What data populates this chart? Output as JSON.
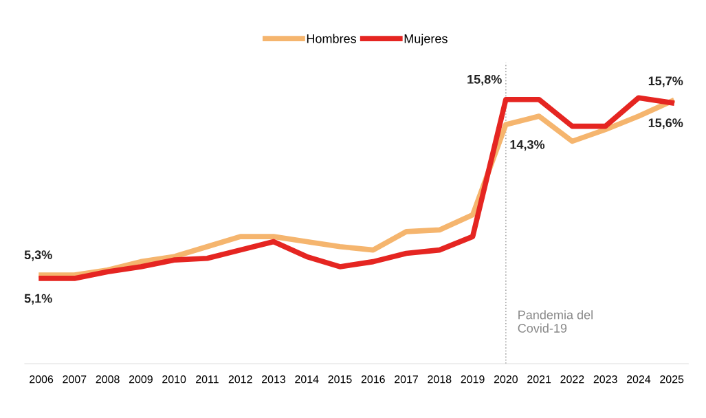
{
  "chart_data": {
    "type": "line",
    "categories": [
      "2006",
      "2007",
      "2008",
      "2009",
      "2010",
      "2011",
      "2012",
      "2013",
      "2014",
      "2015",
      "2016",
      "2017",
      "2018",
      "2019",
      "2020",
      "2021",
      "2022",
      "2023",
      "2024",
      "2025"
    ],
    "series": [
      {
        "name": "Hombres",
        "color": "#f5b56e",
        "values": [
          5.3,
          5.3,
          5.6,
          6.1,
          6.4,
          7.0,
          7.6,
          7.6,
          7.3,
          7.0,
          6.8,
          7.9,
          8.0,
          8.9,
          14.3,
          14.8,
          13.3,
          14.0,
          14.8,
          15.7
        ],
        "value_labels": [
          "5,3%",
          null,
          null,
          null,
          null,
          null,
          null,
          null,
          null,
          null,
          null,
          null,
          null,
          null,
          "14,3%",
          null,
          null,
          null,
          null,
          "15,7%"
        ]
      },
      {
        "name": "Mujeres",
        "color": "#e52521",
        "values": [
          5.1,
          5.1,
          5.5,
          5.8,
          6.2,
          6.3,
          6.8,
          7.3,
          6.4,
          5.8,
          6.1,
          6.6,
          6.8,
          7.6,
          15.8,
          15.8,
          14.2,
          14.2,
          15.9,
          15.6
        ],
        "value_labels": [
          "5,1%",
          null,
          null,
          null,
          null,
          null,
          null,
          null,
          null,
          null,
          null,
          null,
          null,
          null,
          "15,8%",
          null,
          null,
          null,
          null,
          "15,6%"
        ]
      }
    ],
    "ylim": [
      0,
      18
    ],
    "tick_labels": "x",
    "grid": false,
    "legend": "top",
    "marker": "none",
    "line_style": "solid",
    "ref_lines": [
      {
        "axis": "x",
        "value": "2020",
        "label": "Pandemia del\nCovid-19",
        "color": "#aaaaaa",
        "line_style": "dotted"
      }
    ]
  }
}
